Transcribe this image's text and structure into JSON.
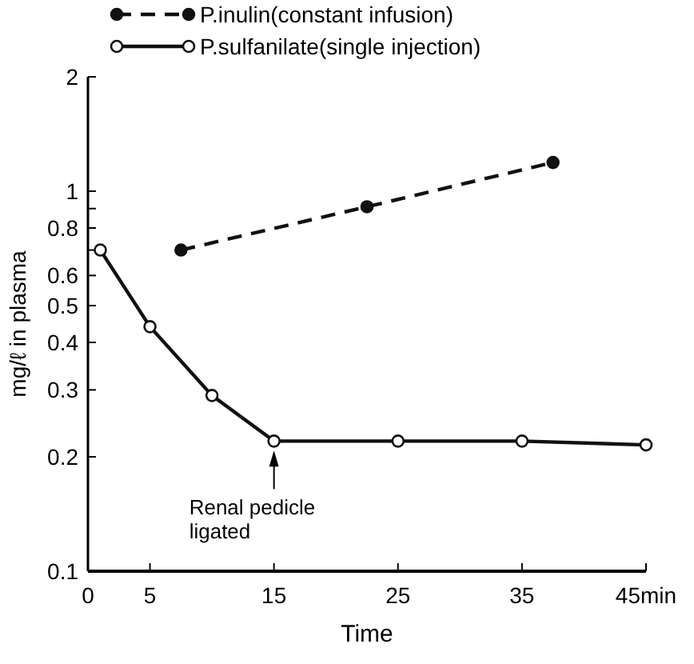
{
  "chart_data": {
    "type": "line",
    "xlabel": "Time",
    "ylabel": "mg/ℓ in plasma",
    "log": true,
    "xlim": [
      0,
      45
    ],
    "ylim": [
      0.1,
      2
    ],
    "xticks": [
      0,
      5,
      15,
      25,
      35,
      {
        "value": 45,
        "label": "45min"
      }
    ],
    "yticks": [
      0.1,
      0.2,
      0.3,
      0.4,
      0.5,
      0.6,
      {
        "value": 0.7,
        "label": null
      },
      0.8,
      {
        "value": 0.9,
        "label": null
      },
      1,
      2
    ],
    "grid": false,
    "legend": "top left",
    "marker": "circle",
    "series": [
      {
        "name": "P.inulin(constant infusion)",
        "color": "#111111",
        "line_style": "dashed",
        "x": [
          7.5,
          22.5,
          37.5
        ],
        "values": [
          0.7,
          0.91,
          1.19
        ]
      },
      {
        "name": "P.sulfanilate(single injection)",
        "color": "#111111",
        "line_style": "solid",
        "x": [
          1,
          5,
          10,
          15,
          25,
          35,
          45
        ],
        "values": [
          0.7,
          0.44,
          0.29,
          0.22,
          0.22,
          0.22,
          0.215
        ]
      }
    ],
    "annotations": [
      {
        "text": "Renal pedicle\nligated",
        "x": 15,
        "y": 0.22
      }
    ]
  }
}
